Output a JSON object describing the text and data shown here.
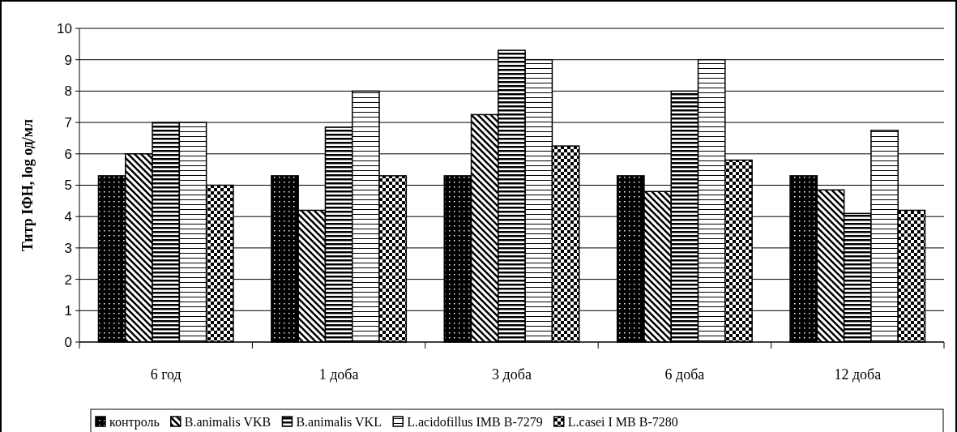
{
  "chart_data": {
    "type": "bar",
    "ylabel": "Титр ІФН, log од/мл",
    "categories": [
      "6 год",
      "1 доба",
      "3 доба",
      "6 доба",
      "12 доба"
    ],
    "series": [
      {
        "name": "контроль",
        "color": "#000000",
        "values": [
          5.3,
          5.3,
          5.3,
          5.3,
          5.3
        ]
      },
      {
        "name": "B.animalis VKB",
        "color": "#000000",
        "values": [
          6,
          4.2,
          7.25,
          4.8,
          4.85
        ]
      },
      {
        "name": "B.animalis VKL",
        "color": "#000000",
        "values": [
          7,
          6.85,
          9.3,
          8,
          4.1
        ]
      },
      {
        "name": "L.acidofillus IMB B-7279",
        "color": "#000000",
        "values": [
          7,
          8,
          9,
          9,
          6.75
        ]
      },
      {
        "name": "L.casei I MB B-7280",
        "color": "#000000",
        "values": [
          5,
          5.3,
          6.25,
          5.8,
          4.2
        ]
      }
    ],
    "ylim": [
      0,
      10
    ],
    "yticks": [
      0,
      1,
      2,
      3,
      4,
      5,
      6,
      7,
      8,
      9,
      10
    ],
    "grid": "y",
    "legend": "bottom"
  }
}
